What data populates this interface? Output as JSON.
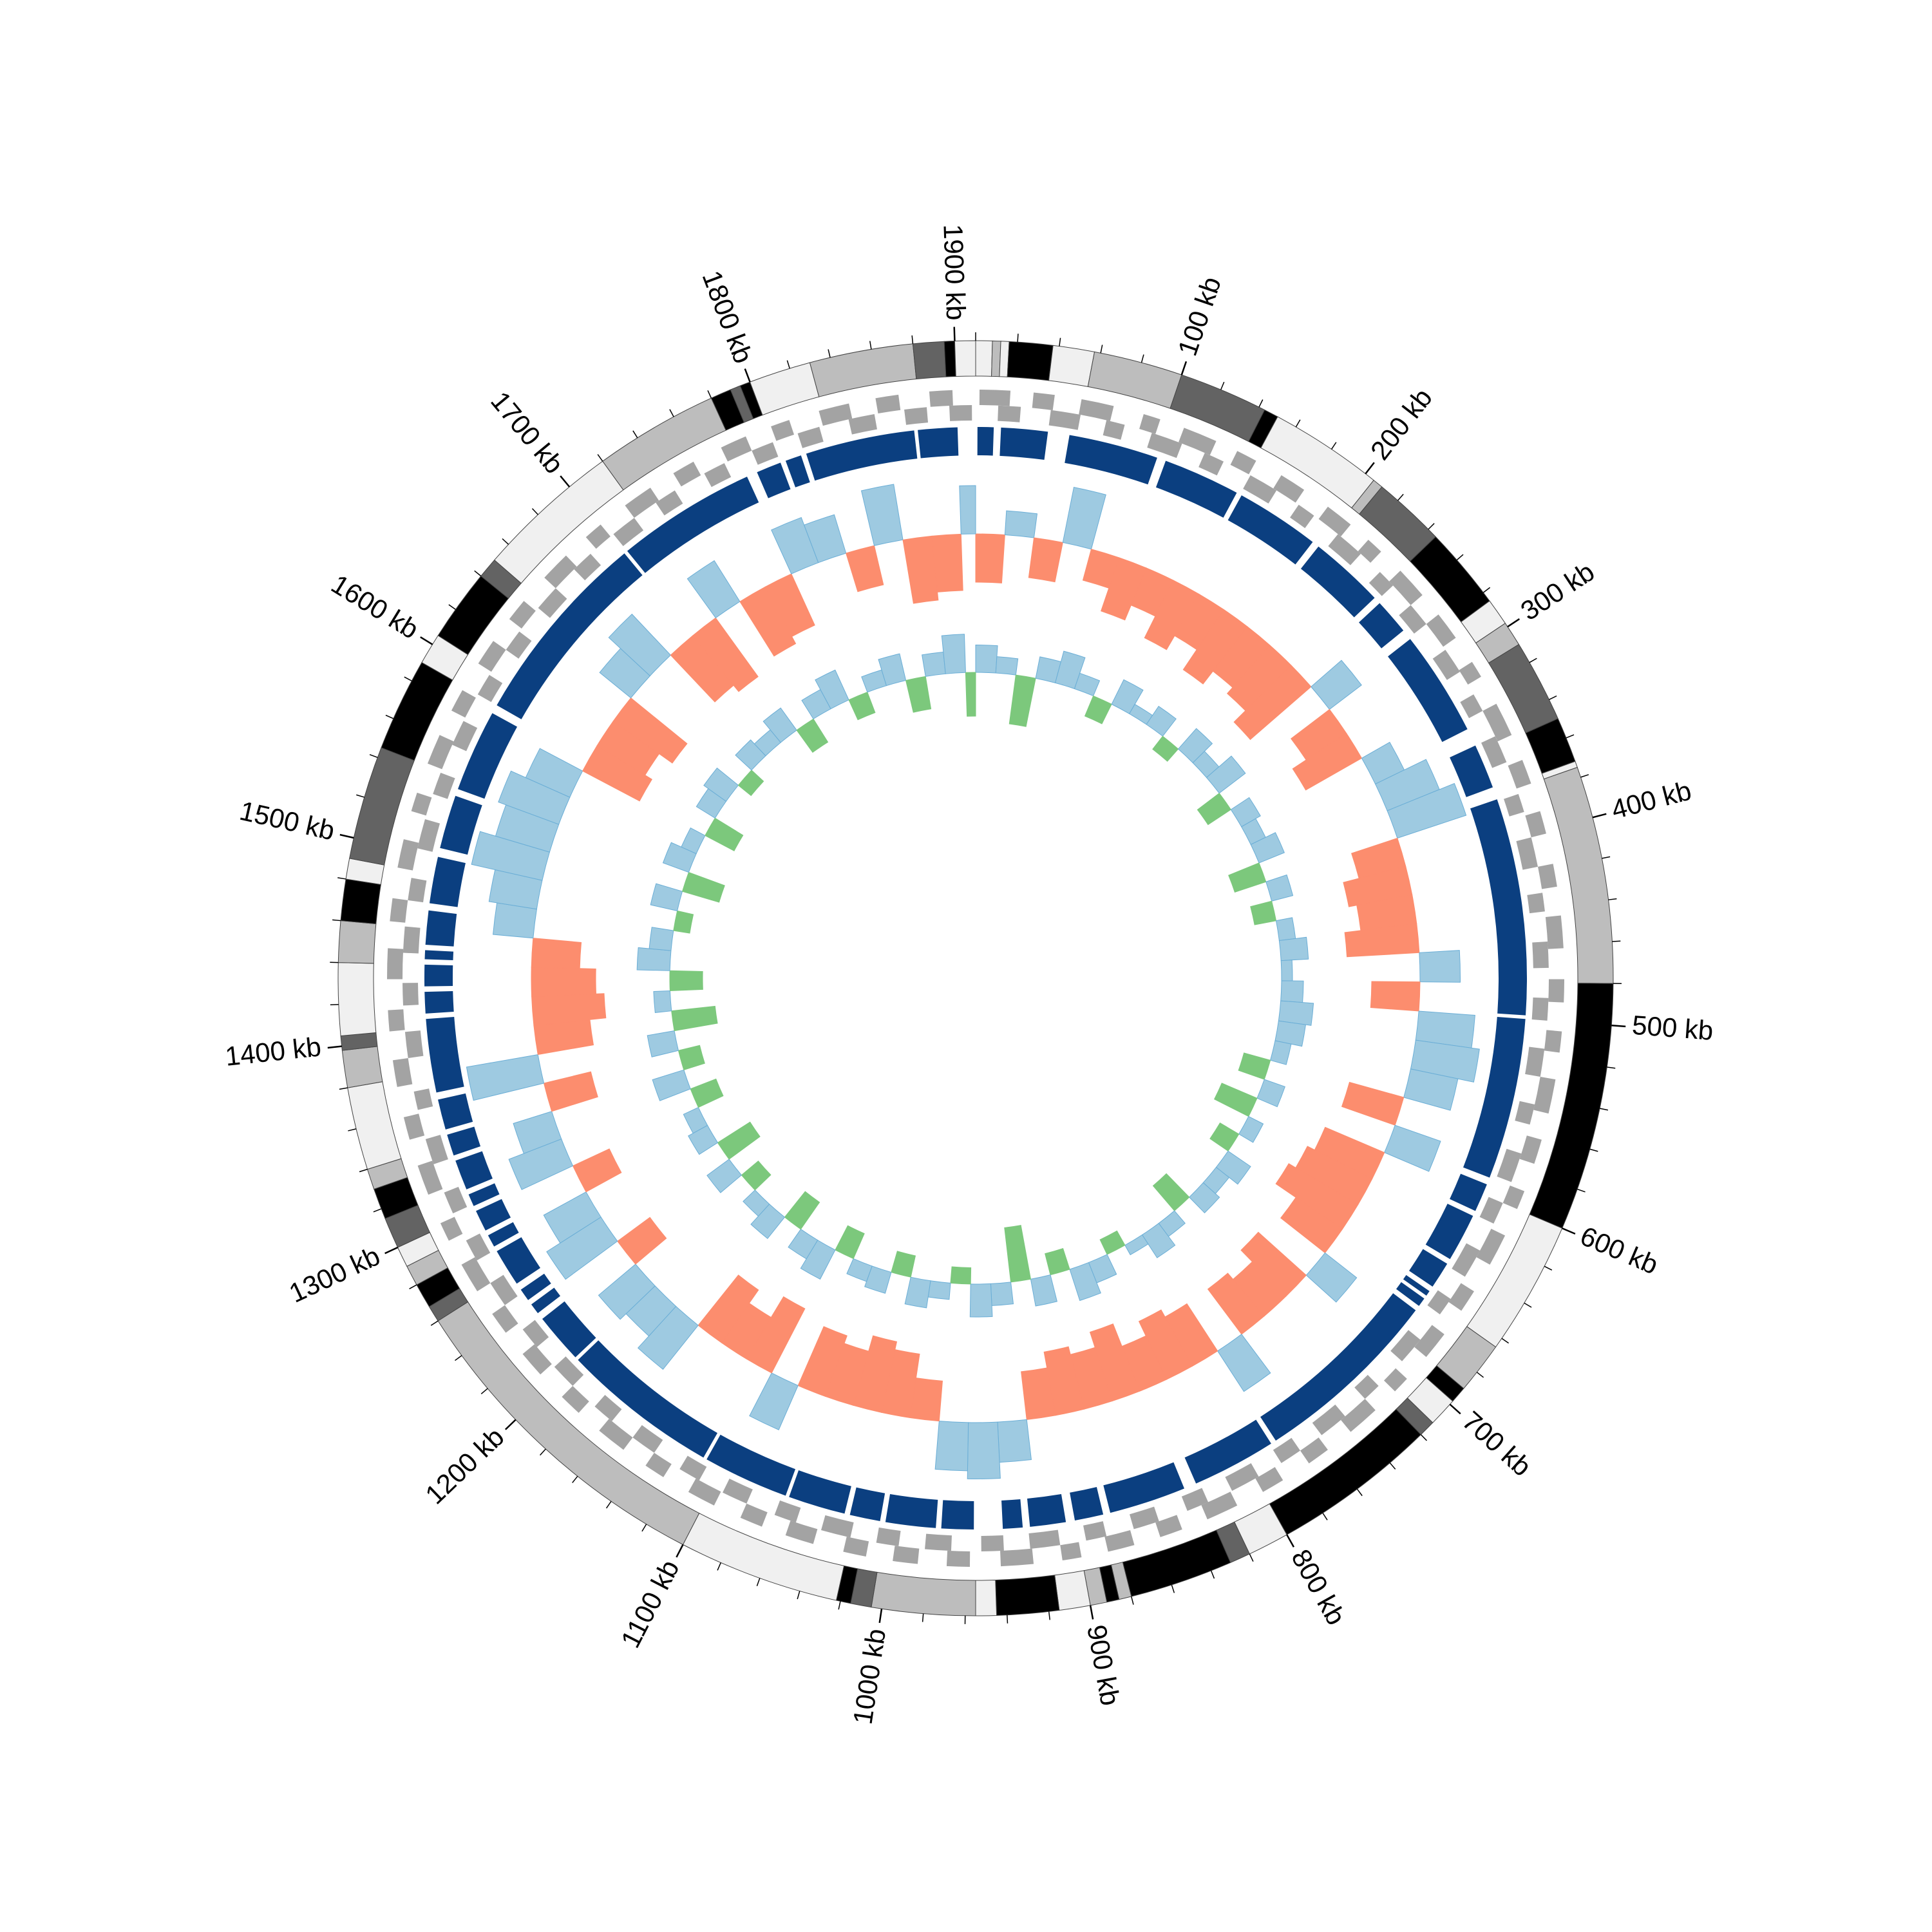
{
  "chart_data": {
    "type": "circular",
    "xlim": [
      0,
      1910
    ],
    "xticks": [
      {
        "value": 100,
        "label": "100 kb"
      },
      {
        "value": 200,
        "label": "200 kb"
      },
      {
        "value": 300,
        "label": "300 kb"
      },
      {
        "value": 400,
        "label": "400 kb"
      },
      {
        "value": 500,
        "label": "500 kb"
      },
      {
        "value": 600,
        "label": "600 kb"
      },
      {
        "value": 700,
        "label": "700 kb"
      },
      {
        "value": 800,
        "label": "800 kb"
      },
      {
        "value": 900,
        "label": "900 kb"
      },
      {
        "value": 1000,
        "label": "1000 kb"
      },
      {
        "value": 1100,
        "label": "1100 kb"
      },
      {
        "value": 1200,
        "label": "1200 kb"
      },
      {
        "value": 1300,
        "label": "1300 kb"
      },
      {
        "value": 1400,
        "label": "1400 kb"
      },
      {
        "value": 1500,
        "label": "1500 kb"
      },
      {
        "value": 1600,
        "label": "1600 kb"
      },
      {
        "value": 1700,
        "label": "1700 kb"
      },
      {
        "value": 1800,
        "label": "1800 kb"
      },
      {
        "value": 1900,
        "label": "1900 kb"
      }
    ],
    "minor_xticks": [
      0,
      20,
      40,
      60,
      80,
      100,
      120,
      140,
      160,
      180,
      200,
      220,
      240,
      260,
      280,
      300,
      320,
      340,
      360,
      380,
      400,
      420,
      440,
      460,
      480,
      500,
      520,
      540,
      560,
      580,
      600,
      620,
      640,
      660,
      680,
      700,
      720,
      740,
      760,
      780,
      800,
      820,
      840,
      860,
      880,
      900,
      920,
      940,
      960,
      980,
      1000,
      1020,
      1040,
      1060,
      1080,
      1100,
      1120,
      1140,
      1160,
      1180,
      1200,
      1220,
      1240,
      1260,
      1280,
      1300,
      1320,
      1340,
      1360,
      1380,
      1400,
      1420,
      1440,
      1460,
      1480,
      1500,
      1520,
      1540,
      1560,
      1580,
      1600,
      1620,
      1640,
      1660,
      1680,
      1700,
      1720,
      1740,
      1760,
      1780,
      1800,
      1820,
      1840,
      1860,
      1880,
      1900
    ],
    "bands": [
      [
        0,
        8,
        "#f0f0f0"
      ],
      [
        8,
        12,
        "#bdbdbd"
      ],
      [
        12,
        16,
        "#f0f0f0"
      ],
      [
        16,
        37,
        "#000000"
      ],
      [
        37,
        57,
        "#f0f0f0"
      ],
      [
        57,
        100,
        "#bdbdbd"
      ],
      [
        100,
        143,
        "#636363"
      ],
      [
        143,
        150,
        "#000000"
      ],
      [
        150,
        205,
        "#f0f0f0"
      ],
      [
        205,
        210,
        "#bdbdbd"
      ],
      [
        210,
        245,
        "#636363"
      ],
      [
        245,
        285,
        "#000000"
      ],
      [
        285,
        298,
        "#f0f0f0"
      ],
      [
        298,
        310,
        "#bdbdbd"
      ],
      [
        310,
        350,
        "#636363"
      ],
      [
        350,
        372,
        "#000000"
      ],
      [
        372,
        375,
        "#f0f0f0"
      ],
      [
        375,
        480,
        "#bdbdbd"
      ],
      [
        480,
        600,
        "#000000"
      ],
      [
        600,
        665,
        "#f0f0f0"
      ],
      [
        665,
        690,
        "#bdbdbd"
      ],
      [
        690,
        698,
        "#000000"
      ],
      [
        698,
        712,
        "#f0f0f0"
      ],
      [
        712,
        720,
        "#636363"
      ],
      [
        720,
        800,
        "#000000"
      ],
      [
        800,
        820,
        "#f0f0f0"
      ],
      [
        820,
        830,
        "#636363"
      ],
      [
        830,
        880,
        "#000000"
      ],
      [
        880,
        886,
        "#bdbdbd"
      ],
      [
        886,
        892,
        "#000000"
      ],
      [
        892,
        900,
        "#bdbdbd"
      ],
      [
        900,
        915,
        "#f0f0f0"
      ],
      [
        915,
        945,
        "#000000"
      ],
      [
        945,
        955,
        "#f0f0f0"
      ],
      [
        955,
        1005,
        "#bdbdbd"
      ],
      [
        1005,
        1015,
        "#636363"
      ],
      [
        1015,
        1022,
        "#000000"
      ],
      [
        1022,
        1100,
        "#f0f0f0"
      ],
      [
        1100,
        1260,
        "#bdbdbd"
      ],
      [
        1260,
        1268,
        "#636363"
      ],
      [
        1268,
        1280,
        "#000000"
      ],
      [
        1280,
        1290,
        "#bdbdbd"
      ],
      [
        1290,
        1300,
        "#f0f0f0"
      ],
      [
        1300,
        1315,
        "#636363"
      ],
      [
        1315,
        1330,
        "#000000"
      ],
      [
        1330,
        1340,
        "#bdbdbd"
      ],
      [
        1340,
        1380,
        "#f0f0f0"
      ],
      [
        1380,
        1398,
        "#bdbdbd"
      ],
      [
        1398,
        1405,
        "#636363"
      ],
      [
        1405,
        1440,
        "#f0f0f0"
      ],
      [
        1440,
        1460,
        "#bdbdbd"
      ],
      [
        1460,
        1480,
        "#000000"
      ],
      [
        1480,
        1490,
        "#f0f0f0"
      ],
      [
        1490,
        1545,
        "#636363"
      ],
      [
        1545,
        1590,
        "#000000"
      ],
      [
        1590,
        1605,
        "#f0f0f0"
      ],
      [
        1605,
        1640,
        "#000000"
      ],
      [
        1640,
        1650,
        "#636363"
      ],
      [
        1650,
        1720,
        "#f0f0f0"
      ],
      [
        1720,
        1780,
        "#bdbdbd"
      ],
      [
        1780,
        1790,
        "#000000"
      ],
      [
        1790,
        1795,
        "#636363"
      ],
      [
        1795,
        1800,
        "#000000"
      ],
      [
        1800,
        1830,
        "#f0f0f0"
      ],
      [
        1830,
        1880,
        "#bdbdbd"
      ],
      [
        1880,
        1895,
        "#636363"
      ],
      [
        1895,
        1900,
        "#000000"
      ],
      [
        1900,
        1910,
        "#f0f0f0"
      ]
    ],
    "gene_color": "#a3a3a3",
    "genes_forward": [
      [
        2,
        18
      ],
      [
        30,
        41
      ],
      [
        55,
        72
      ],
      [
        88,
        97
      ],
      [
        110,
        128
      ],
      [
        140,
        151
      ],
      [
        166,
        180
      ],
      [
        195,
        210
      ],
      [
        222,
        231
      ],
      [
        245,
        262
      ],
      [
        275,
        290
      ],
      [
        305,
        314
      ],
      [
        330,
        348
      ],
      [
        362,
        375
      ],
      [
        390,
        402
      ],
      [
        418,
        430
      ],
      [
        445,
        462
      ],
      [
        478,
        490
      ],
      [
        505,
        516
      ],
      [
        530,
        548
      ],
      [
        562,
        575
      ],
      [
        590,
        600
      ],
      [
        615,
        632
      ],
      [
        648,
        660
      ],
      [
        675,
        690
      ],
      [
        705,
        714
      ],
      [
        728,
        745
      ],
      [
        760,
        772
      ],
      [
        788,
        800
      ],
      [
        815,
        832
      ],
      [
        846,
        858
      ],
      [
        872,
        886
      ],
      [
        900,
        910
      ],
      [
        925,
        942
      ],
      [
        958,
        970
      ],
      [
        985,
        998
      ],
      [
        1012,
        1024
      ],
      [
        1040,
        1055
      ],
      [
        1068,
        1080
      ],
      [
        1095,
        1110
      ],
      [
        1125,
        1136
      ],
      [
        1150,
        1166
      ],
      [
        1180,
        1192
      ],
      [
        1208,
        1222
      ],
      [
        1236,
        1248
      ],
      [
        1262,
        1278
      ],
      [
        1292,
        1302
      ],
      [
        1318,
        1334
      ],
      [
        1348,
        1360
      ],
      [
        1376,
        1390
      ],
      [
        1405,
        1416
      ],
      [
        1432,
        1448
      ],
      [
        1462,
        1474
      ],
      [
        1490,
        1505
      ],
      [
        1520,
        1530
      ],
      [
        1546,
        1562
      ],
      [
        1576,
        1588
      ],
      [
        1604,
        1618
      ],
      [
        1632,
        1644
      ],
      [
        1660,
        1676
      ],
      [
        1690,
        1700
      ],
      [
        1716,
        1732
      ],
      [
        1746,
        1758
      ],
      [
        1774,
        1788
      ],
      [
        1802,
        1812
      ],
      [
        1828,
        1844
      ],
      [
        1858,
        1870
      ],
      [
        1886,
        1898
      ]
    ],
    "genes_reverse": [
      [
        12,
        24
      ],
      [
        40,
        56
      ],
      [
        70,
        80
      ],
      [
        95,
        112
      ],
      [
        125,
        136
      ],
      [
        152,
        168
      ],
      [
        182,
        192
      ],
      [
        208,
        224
      ],
      [
        238,
        248
      ],
      [
        262,
        275
      ],
      [
        292,
        306
      ],
      [
        320,
        330
      ],
      [
        345,
        360
      ],
      [
        378,
        388
      ],
      [
        402,
        418
      ],
      [
        432,
        442
      ],
      [
        458,
        472
      ],
      [
        488,
        500
      ],
      [
        515,
        530
      ],
      [
        545,
        556
      ],
      [
        572,
        588
      ],
      [
        600,
        612
      ],
      [
        628,
        644
      ],
      [
        658,
        668
      ],
      [
        685,
        700
      ],
      [
        718,
        728
      ],
      [
        742,
        758
      ],
      [
        772,
        784
      ],
      [
        798,
        814
      ],
      [
        828,
        840
      ],
      [
        856,
        870
      ],
      [
        885,
        896
      ],
      [
        910,
        926
      ],
      [
        940,
        952
      ],
      [
        968,
        982
      ],
      [
        996,
        1008
      ],
      [
        1022,
        1038
      ],
      [
        1052,
        1064
      ],
      [
        1080,
        1094
      ],
      [
        1108,
        1120
      ],
      [
        1136,
        1150
      ],
      [
        1164,
        1176
      ],
      [
        1192,
        1206
      ],
      [
        1220,
        1232
      ],
      [
        1248,
        1262
      ],
      [
        1276,
        1288
      ],
      [
        1304,
        1316
      ],
      [
        1332,
        1346
      ],
      [
        1362,
        1372
      ],
      [
        1390,
        1404
      ],
      [
        1418,
        1430
      ],
      [
        1446,
        1460
      ],
      [
        1474,
        1486
      ],
      [
        1502,
        1518
      ],
      [
        1532,
        1544
      ],
      [
        1560,
        1574
      ],
      [
        1590,
        1602
      ],
      [
        1618,
        1630
      ],
      [
        1646,
        1660
      ],
      [
        1674,
        1686
      ],
      [
        1702,
        1716
      ],
      [
        1730,
        1742
      ],
      [
        1760,
        1772
      ],
      [
        1788,
        1800
      ],
      [
        1814,
        1826
      ],
      [
        1842,
        1856
      ],
      [
        1872,
        1884
      ],
      [
        1896,
        1908
      ]
    ],
    "block_color": "#0b3f80",
    "blocks": [
      [
        1,
        10
      ],
      [
        14,
        40
      ],
      [
        52,
        102
      ],
      [
        107,
        150
      ],
      [
        153,
        200
      ],
      [
        204,
        246
      ],
      [
        250,
        270
      ],
      [
        276,
        335
      ],
      [
        345,
        370
      ],
      [
        377,
        498
      ],
      [
        500,
        590
      ],
      [
        594,
        610
      ],
      [
        613,
        640
      ],
      [
        643,
        658
      ],
      [
        661,
        664
      ],
      [
        666,
        671
      ],
      [
        674,
        780
      ],
      [
        783,
        830
      ],
      [
        837,
        880
      ],
      [
        884,
        900
      ],
      [
        905,
        925
      ],
      [
        929,
        940
      ],
      [
        956,
        974
      ],
      [
        977,
        1005
      ],
      [
        1008,
        1025
      ],
      [
        1028,
        1060
      ],
      [
        1062,
        1110
      ],
      [
        1112,
        1200
      ],
      [
        1202,
        1230
      ],
      [
        1234,
        1240
      ],
      [
        1243,
        1250
      ],
      [
        1254,
        1275
      ],
      [
        1278,
        1285
      ],
      [
        1288,
        1300
      ],
      [
        1303,
        1310
      ],
      [
        1313,
        1330
      ],
      [
        1333,
        1345
      ],
      [
        1348,
        1365
      ],
      [
        1369,
        1410
      ],
      [
        1413,
        1425
      ],
      [
        1428,
        1440
      ],
      [
        1443,
        1448
      ],
      [
        1451,
        1470
      ],
      [
        1474,
        1500
      ],
      [
        1505,
        1535
      ],
      [
        1539,
        1585
      ],
      [
        1590,
        1700
      ],
      [
        1702,
        1780
      ],
      [
        1786,
        1800
      ],
      [
        1803,
        1812
      ],
      [
        1815,
        1876
      ],
      [
        1878,
        1900
      ]
    ],
    "x": [
      0,
      20,
      40,
      60,
      80,
      100,
      120,
      140,
      160,
      180,
      200,
      220,
      240,
      260,
      280,
      300,
      320,
      340,
      360,
      380,
      400,
      420,
      440,
      460,
      480,
      500,
      520,
      540,
      560,
      580,
      600,
      620,
      640,
      660,
      680,
      700,
      720,
      740,
      760,
      780,
      800,
      820,
      840,
      860,
      880,
      900,
      920,
      940,
      960,
      980,
      1000,
      1020,
      1040,
      1060,
      1080,
      1100,
      1120,
      1140,
      1160,
      1180,
      1200,
      1220,
      1240,
      1260,
      1280,
      1300,
      1320,
      1340,
      1360,
      1380,
      1400,
      1420,
      1440,
      1460,
      1480,
      1500,
      1520,
      1540,
      1560,
      1580,
      1600,
      1620,
      1640,
      1660,
      1680,
      1700,
      1720,
      1740,
      1760,
      1780,
      1800,
      1820,
      1840,
      1860,
      1880,
      1900
    ],
    "series": [
      {
        "ylim": [
          -1,
          1
        ],
        "pos_color": "#9ecae1",
        "neg_color": "#fc8d6e",
        "values": [
          -0.6,
          0.3,
          -0.5,
          0.7,
          -0.4,
          -0.7,
          -0.5,
          -0.8,
          -0.6,
          -0.9,
          -0.7,
          -0.8,
          -1.0,
          0.5,
          -0.6,
          -0.8,
          0.4,
          0.7,
          0.9,
          -0.6,
          -0.8,
          -0.7,
          -0.9,
          0.5,
          -0.6,
          0.7,
          0.8,
          0.6,
          -0.7,
          0.6,
          -0.8,
          -0.9,
          -1.0,
          -0.7,
          0.5,
          -0.8,
          -0.6,
          -0.7,
          0.6,
          -0.7,
          -0.8,
          -0.6,
          -0.9,
          -0.7,
          -0.8,
          -0.6,
          0.5,
          0.7,
          0.6,
          -0.5,
          -0.8,
          -0.9,
          -0.7,
          -0.8,
          0.6,
          -0.9,
          -0.6,
          -0.8,
          0.7,
          0.5,
          0.6,
          -0.5,
          0.8,
          0.6,
          -0.5,
          0.7,
          0.5,
          -0.6,
          0.9,
          -0.7,
          -0.9,
          -0.8,
          -0.6,
          0.5,
          0.6,
          0.9,
          0.7,
          0.8,
          0.6,
          -0.8,
          -0.7,
          -0.9,
          0.5,
          0.7,
          -0.8,
          -0.9,
          0.6,
          -0.8,
          -0.7,
          0.6,
          0.5,
          -0.5,
          0.7,
          -0.8,
          -0.7,
          0.6
        ]
      },
      {
        "ylim": [
          -1,
          1
        ],
        "pos_color": "#9ecae1",
        "neg_color": "#7cc87c",
        "values": [
          0.5,
          0.3,
          -0.9,
          0.4,
          0.6,
          0.3,
          -0.4,
          0.5,
          0.2,
          0.4,
          -0.3,
          0.5,
          0.3,
          0.6,
          -0.5,
          0.4,
          0.3,
          0.5,
          -0.6,
          0.4,
          -0.4,
          0.3,
          0.5,
          0.2,
          0.4,
          0.6,
          0.5,
          0.3,
          -0.5,
          0.4,
          -0.7,
          0.3,
          -0.4,
          0.5,
          0.3,
          0.4,
          -0.6,
          0.3,
          0.5,
          0.2,
          -0.3,
          0.4,
          0.6,
          -0.4,
          0.5,
          -1.0,
          0.4,
          0.6,
          -0.3,
          0.3,
          0.5,
          -0.4,
          0.4,
          0.3,
          -0.5,
          0.6,
          0.4,
          -0.6,
          0.5,
          0.3,
          -0.4,
          0.5,
          -0.7,
          0.4,
          0.3,
          -0.5,
          0.6,
          -0.4,
          0.5,
          -0.8,
          0.3,
          -0.6,
          0.6,
          0.4,
          -0.3,
          0.5,
          -0.7,
          0.5,
          0.3,
          -0.6,
          0.4,
          0.5,
          -0.3,
          0.4,
          0.3,
          0.5,
          -0.5,
          0.4,
          0.6,
          -0.4,
          0.3,
          0.5,
          -0.6,
          0.4,
          0.7,
          -0.8
        ]
      }
    ]
  }
}
